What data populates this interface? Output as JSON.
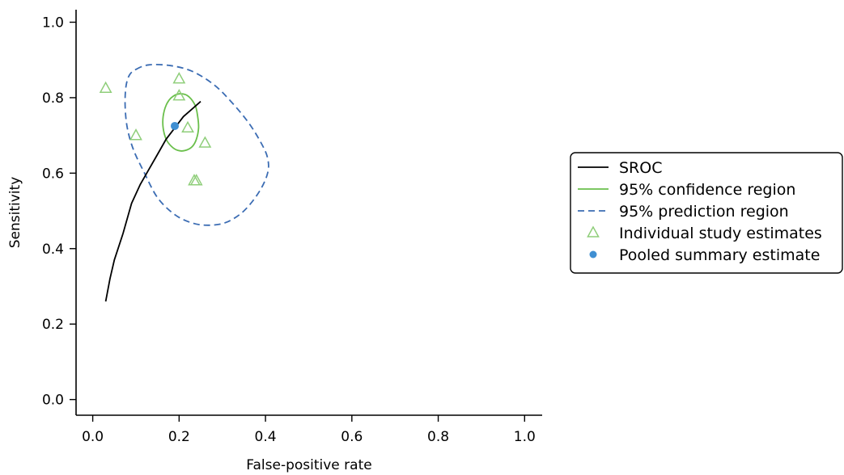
{
  "chart_data": {
    "type": "scatter",
    "xlabel": "False-positive rate",
    "ylabel": "Sensitivity",
    "xlim": [
      -0.04,
      1.04
    ],
    "ylim": [
      -0.04,
      1.04
    ],
    "x_ticks": [
      0.0,
      0.2,
      0.4,
      0.6,
      0.8,
      1.0
    ],
    "y_ticks": [
      0.0,
      0.2,
      0.4,
      0.6,
      0.8,
      1.0
    ],
    "x_tick_labels": [
      "0.0",
      "0.2",
      "0.4",
      "0.6",
      "0.8",
      "1.0"
    ],
    "y_tick_labels": [
      "0.0",
      "0.2",
      "0.4",
      "0.6",
      "0.8",
      "1.0"
    ],
    "grid": false,
    "legend_position": "right",
    "series": [
      {
        "name": "SROC",
        "kind": "line",
        "color": "#000000",
        "points": [
          [
            0.03,
            0.26
          ],
          [
            0.04,
            0.32
          ],
          [
            0.05,
            0.37
          ],
          [
            0.07,
            0.44
          ],
          [
            0.09,
            0.52
          ],
          [
            0.11,
            0.57
          ],
          [
            0.13,
            0.61
          ],
          [
            0.15,
            0.65
          ],
          [
            0.17,
            0.69
          ],
          [
            0.19,
            0.72
          ],
          [
            0.21,
            0.75
          ],
          [
            0.23,
            0.77
          ],
          [
            0.25,
            0.79
          ]
        ]
      },
      {
        "name": "95% confidence region",
        "kind": "closed-curve",
        "color": "#6abf4b",
        "points": [
          [
            0.22,
            0.805
          ],
          [
            0.2,
            0.81
          ],
          [
            0.182,
            0.8
          ],
          [
            0.17,
            0.78
          ],
          [
            0.163,
            0.75
          ],
          [
            0.163,
            0.72
          ],
          [
            0.17,
            0.69
          ],
          [
            0.183,
            0.67
          ],
          [
            0.198,
            0.66
          ],
          [
            0.214,
            0.66
          ],
          [
            0.23,
            0.67
          ],
          [
            0.24,
            0.69
          ],
          [
            0.245,
            0.72
          ],
          [
            0.243,
            0.75
          ],
          [
            0.237,
            0.78
          ]
        ]
      },
      {
        "name": "95% prediction region",
        "kind": "closed-curve",
        "color": "#3b6cb3",
        "points": [
          [
            0.1,
            0.875
          ],
          [
            0.13,
            0.887
          ],
          [
            0.18,
            0.885
          ],
          [
            0.23,
            0.87
          ],
          [
            0.28,
            0.835
          ],
          [
            0.32,
            0.79
          ],
          [
            0.36,
            0.735
          ],
          [
            0.39,
            0.68
          ],
          [
            0.405,
            0.64
          ],
          [
            0.405,
            0.6
          ],
          [
            0.385,
            0.55
          ],
          [
            0.35,
            0.5
          ],
          [
            0.31,
            0.47
          ],
          [
            0.27,
            0.462
          ],
          [
            0.23,
            0.468
          ],
          [
            0.19,
            0.49
          ],
          [
            0.15,
            0.535
          ],
          [
            0.12,
            0.6
          ],
          [
            0.095,
            0.66
          ],
          [
            0.08,
            0.72
          ],
          [
            0.075,
            0.78
          ],
          [
            0.077,
            0.83
          ],
          [
            0.085,
            0.86
          ]
        ]
      },
      {
        "name": "Individual study estimates",
        "kind": "markers",
        "marker": "triangle-open",
        "color": "#8fce7a",
        "points": [
          [
            0.03,
            0.825
          ],
          [
            0.2,
            0.85
          ],
          [
            0.2,
            0.805
          ],
          [
            0.22,
            0.72
          ],
          [
            0.26,
            0.68
          ],
          [
            0.1,
            0.7
          ],
          [
            0.235,
            0.58
          ],
          [
            0.24,
            0.58
          ]
        ]
      },
      {
        "name": "Pooled summary estimate",
        "kind": "markers",
        "marker": "circle-filled",
        "color": "#3f8fd2",
        "points": [
          [
            0.19,
            0.725
          ]
        ]
      }
    ]
  }
}
